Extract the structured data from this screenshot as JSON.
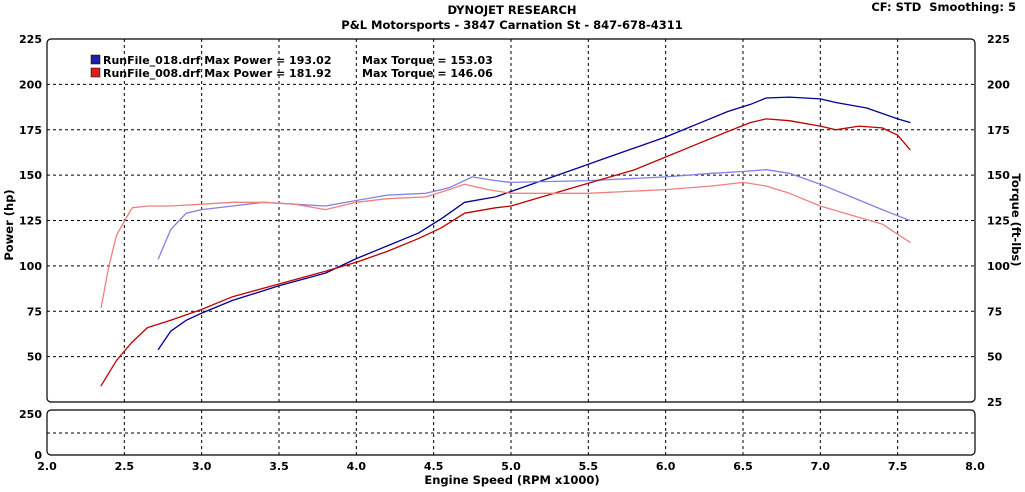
{
  "header": {
    "title": "DYNOJET RESEARCH",
    "subtitle": "P&L Motorsports - 3847 Carnation St - 847-678-4311",
    "settings": "CF: STD  Smoothing: 5"
  },
  "chart_data": {
    "type": "line",
    "title": "DYNOJET RESEARCH",
    "subtitle": "P&L Motorsports - 3847 Carnation St - 847-678-4311",
    "xlabel": "Engine Speed (RPM x1000)",
    "ylabel_left": "Power (hp)",
    "ylabel_right": "Torque (ft-lbs)",
    "xlim": [
      2.0,
      8.0
    ],
    "ylim_left": [
      25,
      225
    ],
    "ylim_right": [
      25,
      225
    ],
    "x_ticks": [
      "2.0",
      "2.5",
      "3.0",
      "3.5",
      "4.0",
      "4.5",
      "5.0",
      "5.5",
      "6.0",
      "6.5",
      "7.0",
      "7.5",
      "8.0"
    ],
    "y_ticks_left": [
      "225",
      "200",
      "175",
      "150",
      "125",
      "100",
      "75",
      "50"
    ],
    "y_ticks_right": [
      "225",
      "200",
      "175",
      "150",
      "125",
      "100",
      "75",
      "50",
      "25"
    ],
    "lower_panel": {
      "ylim": [
        0,
        250
      ],
      "y_ticks": [
        "250",
        "0"
      ],
      "x_bottom_tick": "25"
    },
    "grid": true,
    "legend_position": "top-left",
    "legend": [
      {
        "label": "RunFile_018.drf Max Power = 193.02",
        "torque_label": "Max Torque = 153.03",
        "color": "#1f1fa8"
      },
      {
        "label": "RunFile_008.drf Max Power = 181.92",
        "torque_label": "Max Torque = 146.06",
        "color": "#d81f1f"
      }
    ],
    "series": [
      {
        "name": "RunFile_018.drf",
        "measure": "power",
        "color": "#000090",
        "x": [
          2.72,
          2.8,
          2.9,
          3.0,
          3.2,
          3.5,
          3.8,
          4.0,
          4.2,
          4.4,
          4.55,
          4.7,
          4.9,
          5.0,
          5.2,
          5.4,
          5.6,
          5.8,
          6.0,
          6.2,
          6.4,
          6.55,
          6.65,
          6.8,
          7.0,
          7.1,
          7.3,
          7.5,
          7.58
        ],
        "values": [
          54,
          64,
          70,
          74,
          81,
          89,
          96,
          104,
          111,
          118,
          126,
          135,
          138,
          141,
          147,
          153,
          159,
          165,
          171,
          178,
          185,
          189,
          192.5,
          193,
          192,
          190,
          187,
          181,
          179
        ]
      },
      {
        "name": "RunFile_018.drf",
        "measure": "torque",
        "color": "#8080e8",
        "x": [
          2.72,
          2.8,
          2.9,
          3.0,
          3.2,
          3.4,
          3.6,
          3.8,
          4.0,
          4.2,
          4.45,
          4.6,
          4.75,
          4.9,
          5.0,
          5.5,
          6.0,
          6.3,
          6.5,
          6.65,
          6.8,
          7.0,
          7.2,
          7.4,
          7.58
        ],
        "values": [
          104,
          120,
          129,
          131,
          133,
          135,
          134,
          133,
          136,
          139,
          140,
          143,
          149,
          147,
          146,
          147,
          149,
          151,
          152,
          153,
          151,
          145,
          138,
          131,
          125
        ]
      },
      {
        "name": "RunFile_008.drf",
        "measure": "power",
        "color": "#c00000",
        "x": [
          2.35,
          2.45,
          2.55,
          2.65,
          2.8,
          3.0,
          3.2,
          3.5,
          3.8,
          4.0,
          4.2,
          4.4,
          4.55,
          4.7,
          4.9,
          5.0,
          5.2,
          5.4,
          5.6,
          5.8,
          6.0,
          6.2,
          6.4,
          6.55,
          6.65,
          6.8,
          7.0,
          7.1,
          7.25,
          7.4,
          7.5,
          7.58
        ],
        "values": [
          34,
          48,
          58,
          66,
          70,
          76,
          83,
          90,
          97,
          102,
          108,
          115,
          121,
          129,
          132,
          133,
          138,
          143,
          148,
          153,
          160,
          167,
          174,
          179,
          181,
          180,
          177,
          175,
          177,
          176,
          172,
          164
        ]
      },
      {
        "name": "RunFile_008.drf",
        "measure": "torque",
        "color": "#f08080",
        "x": [
          2.35,
          2.4,
          2.45,
          2.55,
          2.65,
          2.8,
          3.0,
          3.2,
          3.4,
          3.6,
          3.8,
          4.0,
          4.2,
          4.45,
          4.6,
          4.7,
          4.85,
          5.0,
          5.5,
          6.0,
          6.3,
          6.5,
          6.65,
          6.8,
          7.0,
          7.2,
          7.4,
          7.58
        ],
        "values": [
          77,
          100,
          117,
          132,
          133,
          133,
          134,
          135,
          135,
          134,
          131,
          135,
          137,
          138,
          142,
          145,
          142,
          140,
          140,
          142,
          144,
          146,
          144,
          140,
          133,
          128,
          123,
          113
        ]
      }
    ]
  }
}
